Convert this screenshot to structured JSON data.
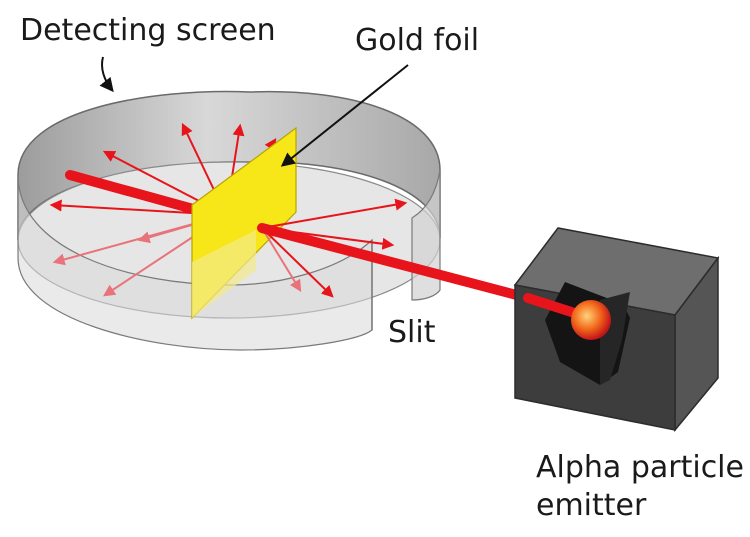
{
  "labels": {
    "detecting_screen": "Detecting screen",
    "gold_foil": "Gold foil",
    "slit": "Slit",
    "emitter_line1": "Alpha particle",
    "emitter_line2": "emitter"
  },
  "colors": {
    "beam": "#e8141b",
    "scatter": "#e8141b",
    "gold": "#f7e618",
    "screen": "#c9c9c9",
    "box_front": "#3d3d3d",
    "box_top": "#6e6e6e",
    "box_side": "#555555"
  }
}
